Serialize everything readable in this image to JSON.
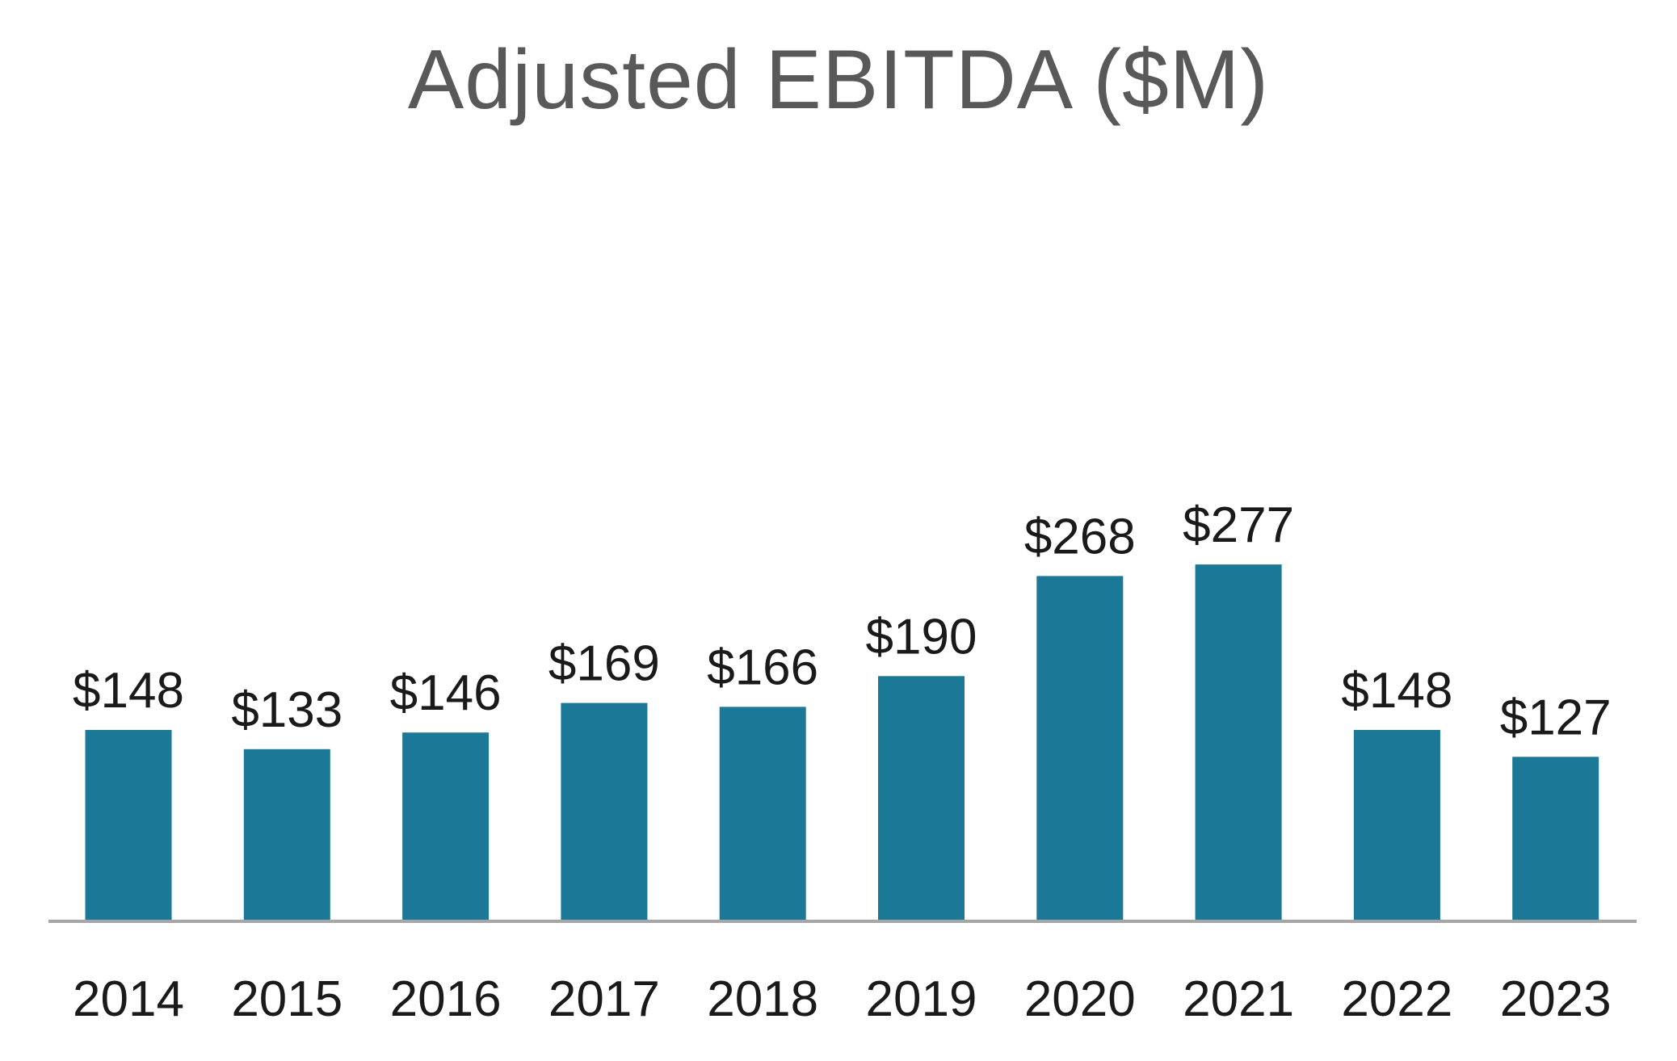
{
  "chart_data": {
    "type": "bar",
    "title": "Adjusted EBITDA ($M)",
    "categories": [
      "2014",
      "2015",
      "2016",
      "2017",
      "2018",
      "2019",
      "2020",
      "2021",
      "2022",
      "2023"
    ],
    "values": [
      148,
      133,
      146,
      169,
      166,
      190,
      268,
      277,
      148,
      127
    ],
    "data_labels": [
      "$148",
      "$133",
      "$146",
      "$169",
      "$166",
      "$190",
      "$268",
      "$277",
      "$148",
      "$127"
    ],
    "ylim": [
      0,
      300
    ],
    "grid": false,
    "legend": "none",
    "colors": {
      "bar": "#1B7896",
      "axis": "#A6A6A6",
      "title": "#595959",
      "labels": "#1A1A1A"
    }
  }
}
